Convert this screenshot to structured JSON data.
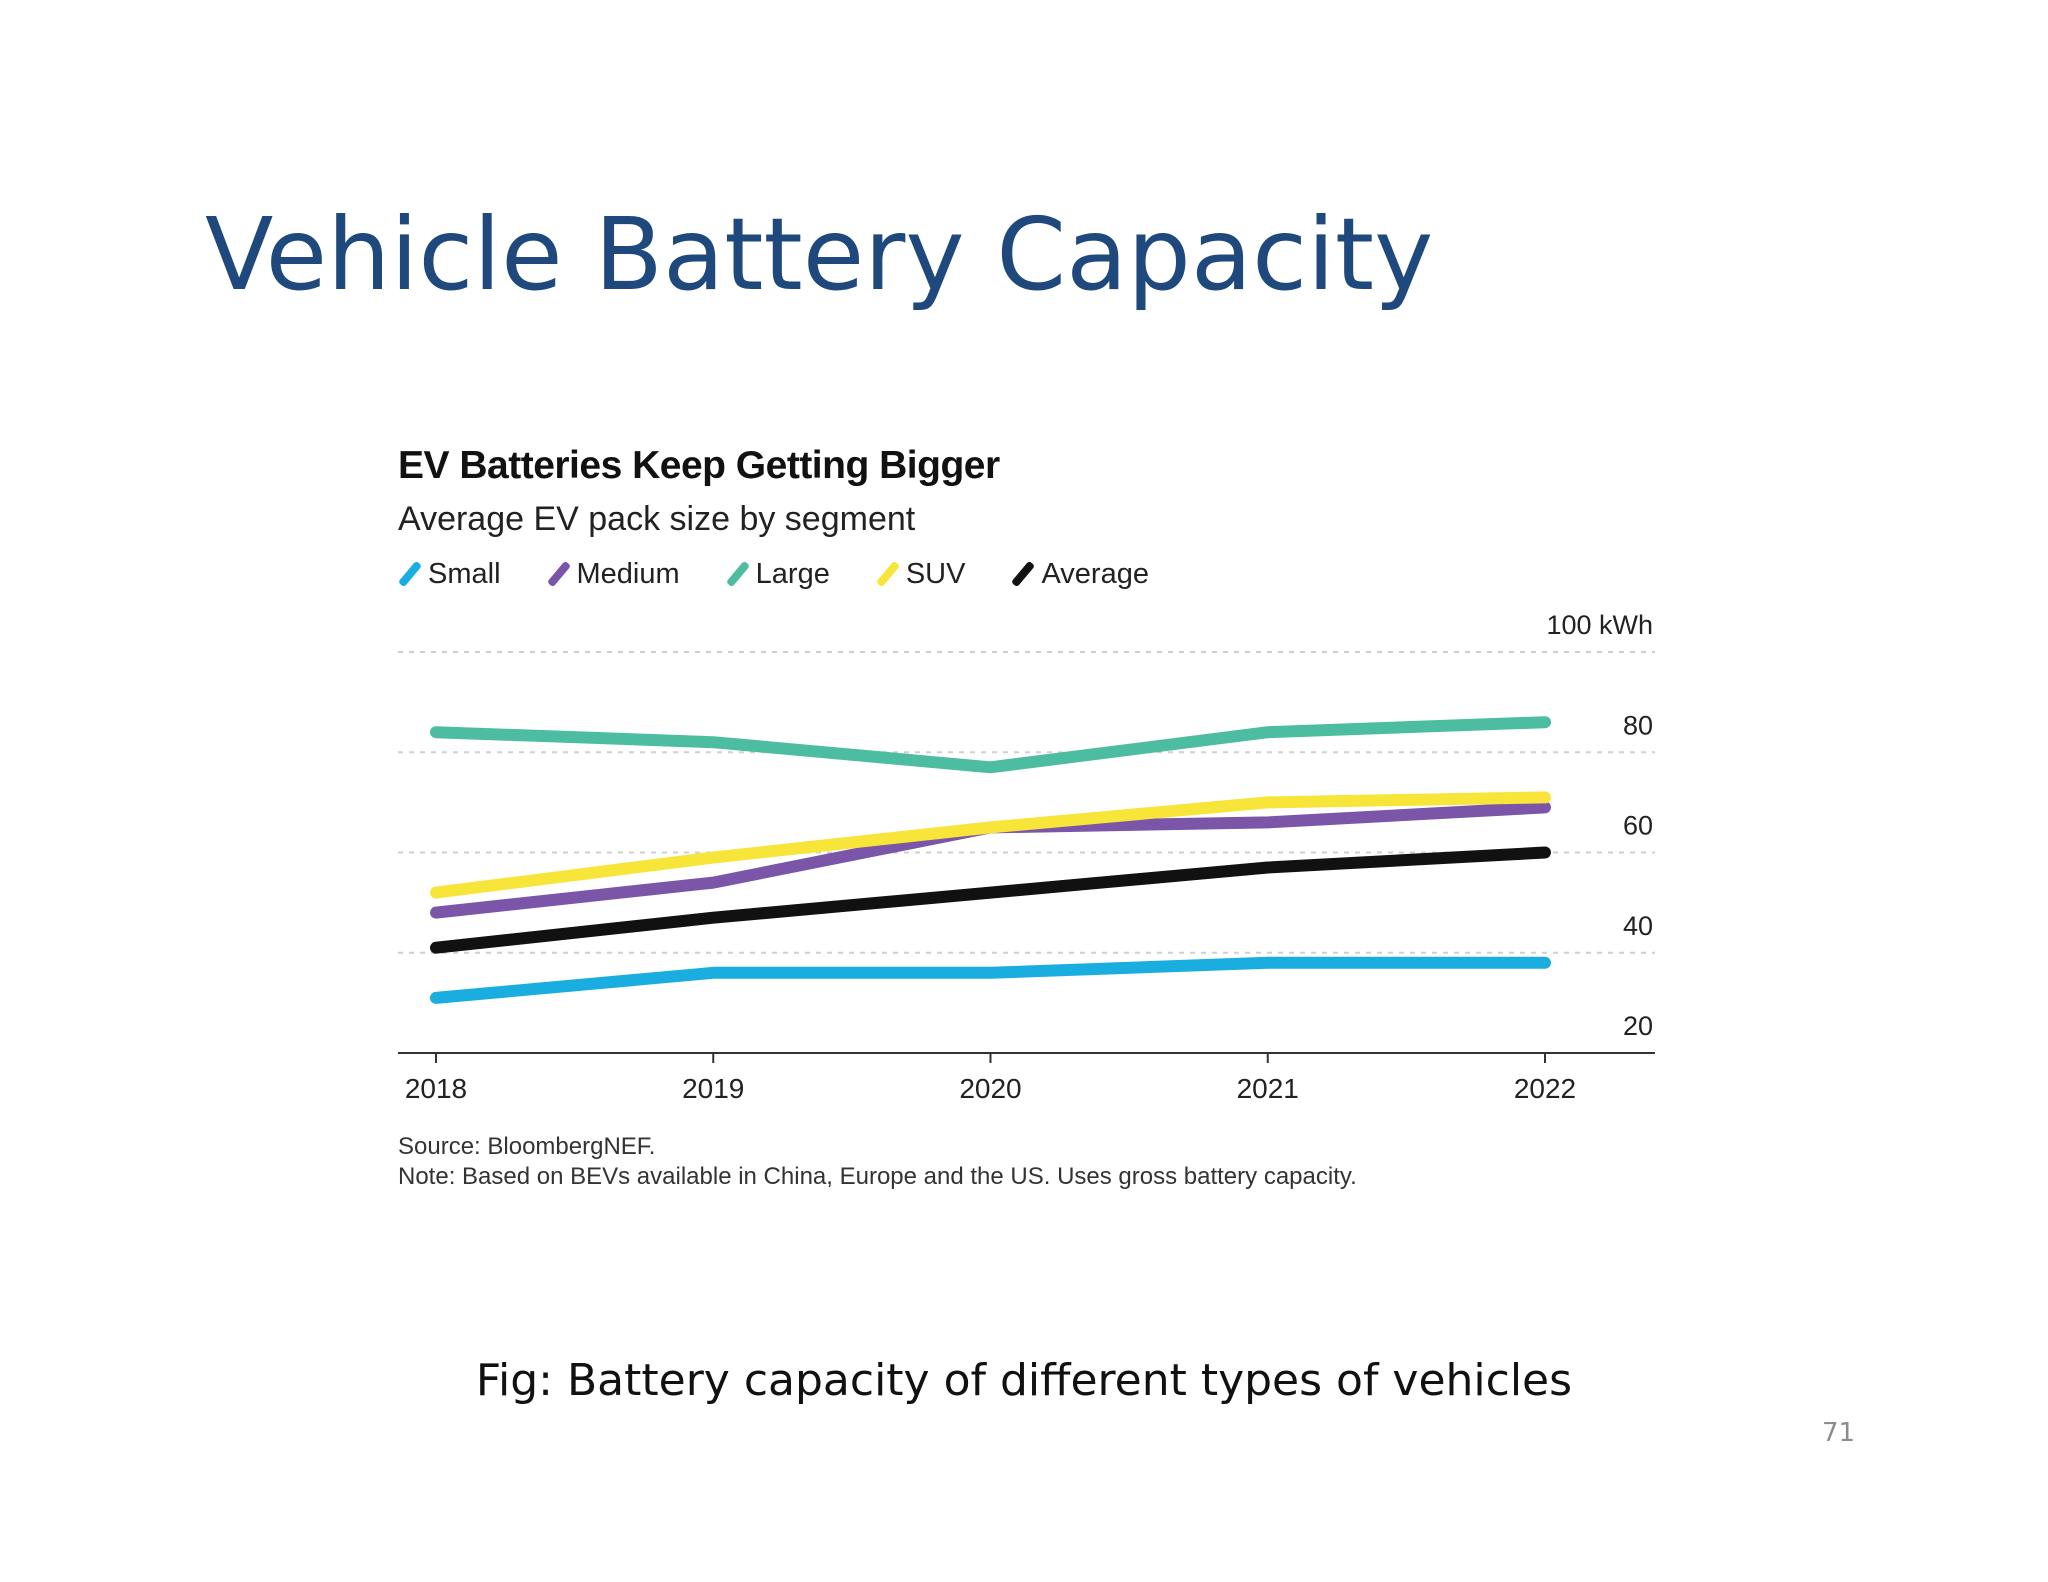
{
  "slide": {
    "title": "Vehicle Battery Capacity",
    "caption": "Fig: Battery capacity of different types of vehicles",
    "page_number": "71"
  },
  "chart_data": {
    "type": "line",
    "title": "EV Batteries Keep Getting Bigger",
    "subtitle": "Average EV pack size by segment",
    "unit_label": "100 kWh",
    "x": [
      2018,
      2019,
      2020,
      2021,
      2022
    ],
    "x_tick_labels": [
      "2018",
      "2019",
      "2020",
      "2021",
      "2022"
    ],
    "ylim": [
      20,
      100
    ],
    "y_ticks": [
      20,
      40,
      60,
      80,
      100
    ],
    "y_tick_labels": [
      "20",
      "40",
      "60",
      "80",
      "100 kWh"
    ],
    "y_axis_side": "right",
    "grid": true,
    "legend_position": "top-left",
    "series": [
      {
        "name": "Small",
        "color": "#1aaee0",
        "values": [
          31,
          36,
          36,
          38,
          38
        ]
      },
      {
        "name": "Medium",
        "color": "#7b55a8",
        "values": [
          48,
          54,
          65,
          66,
          69
        ]
      },
      {
        "name": "Large",
        "color": "#4dbda1",
        "values": [
          84,
          82,
          77,
          84,
          86
        ]
      },
      {
        "name": "SUV",
        "color": "#f8e53a",
        "values": [
          52,
          59,
          65,
          70,
          71
        ]
      },
      {
        "name": "Average",
        "color": "#111111",
        "values": [
          41,
          47,
          52,
          57,
          60
        ]
      }
    ],
    "source": "Source: BloombergNEF.",
    "note": "Note: Based on BEVs available in China, Europe and the US. Uses gross battery capacity."
  }
}
